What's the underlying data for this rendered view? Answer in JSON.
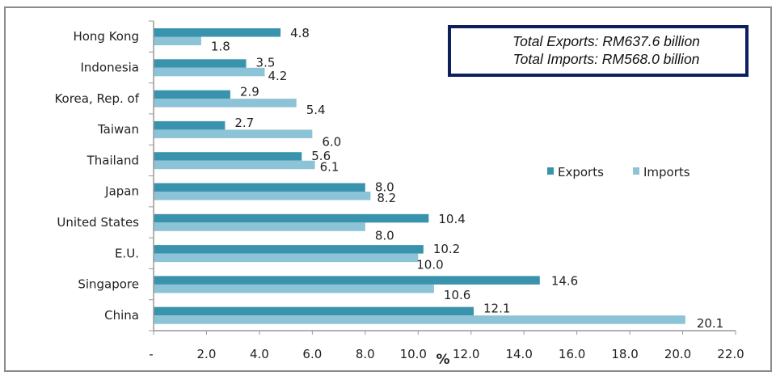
{
  "chart_data": {
    "type": "bar",
    "orientation": "horizontal",
    "categories": [
      "Hong Kong",
      "Indonesia",
      "Korea, Rep. of",
      "Taiwan",
      "Thailand",
      "Japan",
      "United States",
      "E.U.",
      "Singapore",
      "China"
    ],
    "series": [
      {
        "name": "Exports",
        "color": "#3a93ad",
        "values": [
          4.8,
          3.5,
          2.9,
          2.7,
          5.6,
          8.0,
          10.4,
          10.2,
          14.6,
          12.1
        ],
        "labels": [
          "4.8",
          "3.5",
          "2.9",
          "2.7",
          "5.6",
          "8.0",
          "10.4",
          "10.2",
          "14.6",
          "12.1"
        ]
      },
      {
        "name": "Imports",
        "color": "#8cc3d6",
        "values": [
          1.8,
          4.2,
          5.4,
          6.0,
          6.1,
          8.2,
          8.0,
          10.0,
          10.6,
          20.1
        ],
        "labels": [
          "1.8",
          "4.2",
          "5.4",
          "6.0",
          "6.1",
          "8.2",
          "8.0",
          "10.0",
          "10.6",
          "20.1"
        ]
      }
    ],
    "xlim": [
      0,
      22
    ],
    "xticks": [
      "-",
      "2.0",
      "4.0",
      "6.0",
      "8.0",
      "10.0",
      "12.0",
      "14.0",
      "16.0",
      "18.0",
      "20.0",
      "22.0"
    ],
    "xlabel": "%",
    "legend_position": "right",
    "grid": false
  },
  "totals": {
    "exports": "Total Exports: RM637.6 billion",
    "imports": "Total Imports: RM568.0 billion"
  }
}
